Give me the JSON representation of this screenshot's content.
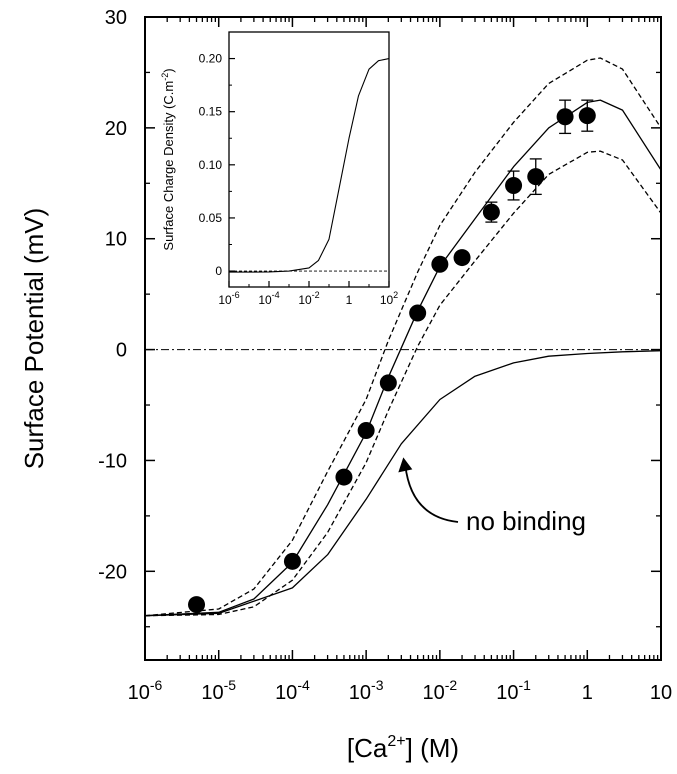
{
  "chart_data": [
    {
      "type": "scatter",
      "title": "",
      "xlabel": "[Ca2+] (M)",
      "ylabel": "Surface Potential (mV)",
      "xscale": "log",
      "xlim": [
        1e-06,
        10
      ],
      "ylim": [
        -28,
        30
      ],
      "x_ticks": [
        1e-06,
        1e-05,
        0.0001,
        0.001,
        0.01,
        0.1,
        1,
        10
      ],
      "x_tick_labels": [
        {
          "base": "10",
          "exp": "-6"
        },
        {
          "base": "10",
          "exp": "-5"
        },
        {
          "base": "10",
          "exp": "-4"
        },
        {
          "base": "10",
          "exp": "-3"
        },
        {
          "base": "10",
          "exp": "-2"
        },
        {
          "base": "10",
          "exp": "-1"
        },
        {
          "base": "1",
          "exp": ""
        },
        {
          "base": "10",
          "exp": ""
        }
      ],
      "y_ticks": [
        -20,
        -10,
        0,
        10,
        20,
        30
      ],
      "y_tick_labels": [
        "-20",
        "-10",
        "0",
        "10",
        "20",
        "30"
      ],
      "points": [
        {
          "x": 5e-06,
          "y": -23.0,
          "err": 0
        },
        {
          "x": 0.0001,
          "y": -19.1,
          "err": 0
        },
        {
          "x": 0.0005,
          "y": -11.5,
          "err": 0
        },
        {
          "x": 0.001,
          "y": -7.3,
          "err": 0
        },
        {
          "x": 0.002,
          "y": -3.0,
          "err": 0
        },
        {
          "x": 0.005,
          "y": 3.3,
          "err": 0
        },
        {
          "x": 0.01,
          "y": 7.7,
          "err": 0
        },
        {
          "x": 0.02,
          "y": 8.3,
          "err": 0
        },
        {
          "x": 0.05,
          "y": 12.4,
          "err": 0.9
        },
        {
          "x": 0.1,
          "y": 14.8,
          "err": 1.3
        },
        {
          "x": 0.2,
          "y": 15.6,
          "err": 1.6
        },
        {
          "x": 0.5,
          "y": 21.0,
          "err": 1.5
        },
        {
          "x": 1,
          "y": 21.1,
          "err": 1.4
        }
      ],
      "series": [
        {
          "style": "solid",
          "x": [
            1e-06,
            1e-05,
            3e-05,
            0.0001,
            0.0003,
            0.001,
            0.002,
            0.005,
            0.01,
            0.03,
            0.1,
            0.3,
            1,
            1.5,
            3,
            10
          ],
          "y": [
            -24.0,
            -23.7,
            -22.5,
            -19.2,
            -14.0,
            -7.5,
            -2.5,
            3.5,
            7.5,
            11.8,
            16.5,
            20.0,
            22.3,
            22.5,
            21.6,
            16.2
          ]
        },
        {
          "style": "dashed",
          "x": [
            1e-06,
            1e-05,
            3e-05,
            0.0001,
            0.0003,
            0.001,
            0.002,
            0.005,
            0.01,
            0.03,
            0.1,
            0.3,
            1,
            1.5,
            3,
            10
          ],
          "y": [
            -24.0,
            -23.4,
            -21.6,
            -17.2,
            -11.0,
            -4.5,
            0.8,
            7.0,
            11.2,
            16.0,
            20.5,
            24.0,
            26.1,
            26.3,
            25.3,
            20.0
          ]
        },
        {
          "style": "dashed",
          "x": [
            1e-06,
            1e-05,
            3e-05,
            0.0001,
            0.0003,
            0.001,
            0.002,
            0.005,
            0.01,
            0.03,
            0.1,
            0.3,
            1,
            1.5,
            3,
            10
          ],
          "y": [
            -24.0,
            -23.9,
            -23.2,
            -20.8,
            -16.5,
            -10.2,
            -5.5,
            0.3,
            4.0,
            8.0,
            12.3,
            15.8,
            17.8,
            17.9,
            17.1,
            12.3
          ]
        },
        {
          "style": "solid",
          "label": "no binding",
          "x": [
            1e-06,
            1e-05,
            0.0001,
            0.0003,
            0.001,
            0.003,
            0.01,
            0.03,
            0.1,
            0.3,
            1,
            3,
            10
          ],
          "y": [
            -24.0,
            -23.8,
            -21.5,
            -18.5,
            -13.5,
            -8.5,
            -4.5,
            -2.4,
            -1.2,
            -0.6,
            -0.35,
            -0.2,
            -0.1
          ]
        }
      ],
      "reference_line": {
        "y": 0,
        "style": "dash-dot"
      },
      "annotations": [
        {
          "text": "no binding",
          "points_to": {
            "x": 0.003,
            "y": -9.0
          }
        }
      ]
    },
    {
      "type": "line",
      "title": "",
      "xlabel": "",
      "ylabel": "Surface Charge Density (C.m-2)",
      "ylabel_parts": {
        "main": "Surface Charge Density (C.m",
        "sup": "-2",
        "end": ")"
      },
      "xscale": "log",
      "xlim": [
        1e-06,
        100
      ],
      "ylim": [
        -0.015,
        0.225
      ],
      "x_ticks": [
        1e-06,
        0.0001,
        0.01,
        1,
        100
      ],
      "x_tick_labels": [
        {
          "base": "10",
          "exp": "-6"
        },
        {
          "base": "10",
          "exp": "-4"
        },
        {
          "base": "10",
          "exp": "-2"
        },
        {
          "base": "1",
          "exp": ""
        },
        {
          "base": "10",
          "exp": "2"
        }
      ],
      "y_ticks": [
        0,
        0.05,
        0.1,
        0.15,
        0.2
      ],
      "y_tick_labels": [
        "0",
        "0.05",
        "0.10",
        "0.15",
        "0.20"
      ],
      "series": [
        {
          "style": "solid",
          "x": [
            1e-06,
            1e-05,
            0.0001,
            0.001,
            0.01,
            0.03,
            0.1,
            0.3,
            1,
            3,
            10,
            30,
            100
          ],
          "y": [
            -0.001,
            -0.001,
            -0.0008,
            0.0,
            0.003,
            0.01,
            0.03,
            0.075,
            0.125,
            0.165,
            0.19,
            0.198,
            0.2
          ]
        }
      ],
      "reference_line": {
        "y": 0,
        "style": "dashed"
      }
    }
  ]
}
